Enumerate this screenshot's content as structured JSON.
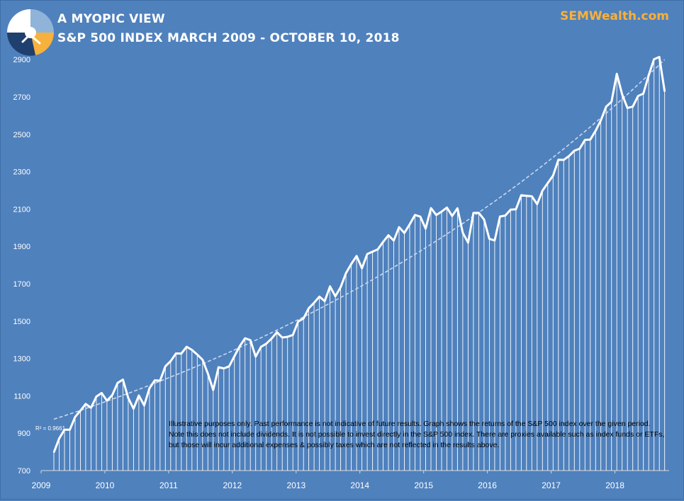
{
  "header": {
    "line1": "A MYOPIC VIEW",
    "line2": "S&P 500 INDEX MARCH 2009 - OCTOBER 10, 2018",
    "brand": "SEMWealth.com"
  },
  "colors": {
    "background": "#4f81bd",
    "line": "#ffffff",
    "brand": "#f7b13d",
    "trend": "#c9d8ee"
  },
  "disclaimer": "Illustrative purposes only. Past performance is not indicative of future results. Graph shows the returns of the S&P 500 index over the given period. Note this does not include dividends. It is not possible to invest directly in the S&P 500 index. There are proxies available such as index funds or ETFs, but those will incur additional expenses & possibly taxes which are not reflected in the results above.",
  "chart_data": {
    "type": "line",
    "title": "S&P 500 INDEX MARCH 2009 - OCTOBER 10, 2018",
    "xlabel": "",
    "ylabel": "",
    "x_start": 2009.2,
    "x_step": 0.0833,
    "xlim": [
      2009.0,
      2018.85
    ],
    "ylim": [
      700,
      2950
    ],
    "y_ticks": [
      "700",
      "900",
      "1100",
      "1300",
      "1500",
      "1700",
      "1900",
      "2100",
      "2300",
      "2500",
      "2700",
      "2900"
    ],
    "x_ticks": [
      "2009",
      "2010",
      "2011",
      "2012",
      "2013",
      "2014",
      "2015",
      "2016",
      "2017",
      "2018"
    ],
    "grid": false,
    "trendline": {
      "type": "exponential",
      "r2_label": "R² = 0.9661",
      "start": 975,
      "end": 2900
    },
    "series": [
      {
        "name": "S&P 500",
        "values": [
          797,
          872,
          919,
          919,
          987,
          1021,
          1057,
          1036,
          1096,
          1115,
          1074,
          1104,
          1169,
          1187,
          1089,
          1031,
          1102,
          1049,
          1141,
          1183,
          1181,
          1258,
          1286,
          1327,
          1326,
          1363,
          1346,
          1321,
          1293,
          1219,
          1131,
          1253,
          1247,
          1258,
          1312,
          1366,
          1408,
          1398,
          1310,
          1362,
          1379,
          1407,
          1441,
          1412,
          1416,
          1426,
          1498,
          1514,
          1569,
          1598,
          1631,
          1607,
          1686,
          1633,
          1682,
          1757,
          1806,
          1849,
          1783,
          1859,
          1872,
          1884,
          1924,
          1960,
          1931,
          2003,
          1972,
          2018,
          2068,
          2059,
          1995,
          2105,
          2068,
          2086,
          2108,
          2063,
          2104,
          1973,
          1920,
          2079,
          2080,
          2044,
          1940,
          1932,
          2060,
          2065,
          2097,
          2099,
          2174,
          2171,
          2168,
          2126,
          2198,
          2239,
          2279,
          2364,
          2363,
          2384,
          2412,
          2423,
          2470,
          2472,
          2519,
          2575,
          2648,
          2674,
          2824,
          2714,
          2641,
          2648,
          2705,
          2718,
          2816,
          2902,
          2914,
          2729
        ]
      }
    ]
  }
}
